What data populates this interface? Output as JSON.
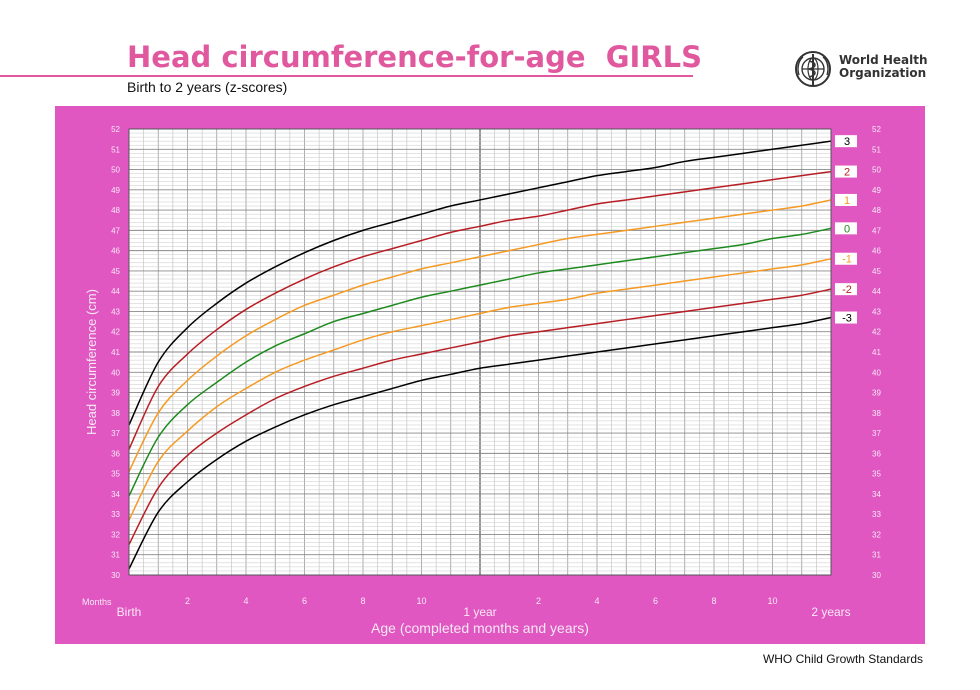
{
  "header": {
    "title": "Head circumference-for-age  GIRLS",
    "subtitle": "Birth to 2 years (z-scores)",
    "organization_line1": "World Health",
    "organization_line2": "Organization",
    "logo_icon": "who-emblem-icon"
  },
  "footer": {
    "text": "WHO Child Growth Standards"
  },
  "colors": {
    "title": "#e0589e",
    "panel_background": "#e057c2",
    "sd3": "#000000",
    "sd2": "#b81d24",
    "sd1": "#f59a23",
    "sd0": "#1e8a1e"
  },
  "chart_data": {
    "type": "line",
    "xlabel": "Age (completed months and years)",
    "ylabel": "Head circumference (cm)",
    "xlim": [
      0,
      24
    ],
    "ylim": [
      30,
      52
    ],
    "x_unit_label": "Months",
    "x_tick_labels": [
      {
        "month": 0,
        "label": "Birth"
      },
      {
        "month": 2,
        "label": "2"
      },
      {
        "month": 4,
        "label": "4"
      },
      {
        "month": 6,
        "label": "6"
      },
      {
        "month": 8,
        "label": "8"
      },
      {
        "month": 10,
        "label": "10"
      },
      {
        "month": 12,
        "label": "1 year"
      },
      {
        "month": 14,
        "label": "2"
      },
      {
        "month": 16,
        "label": "4"
      },
      {
        "month": 18,
        "label": "6"
      },
      {
        "month": 20,
        "label": "8"
      },
      {
        "month": 22,
        "label": "10"
      },
      {
        "month": 24,
        "label": "2 years"
      }
    ],
    "y_ticks": [
      30,
      31,
      32,
      33,
      34,
      35,
      36,
      37,
      38,
      39,
      40,
      41,
      42,
      43,
      44,
      45,
      46,
      47,
      48,
      49,
      50,
      51,
      52
    ],
    "grid": true,
    "x": [
      0,
      1,
      2,
      3,
      4,
      5,
      6,
      7,
      8,
      9,
      10,
      11,
      12,
      13,
      14,
      15,
      16,
      17,
      18,
      19,
      20,
      21,
      22,
      23,
      24
    ],
    "series": [
      {
        "name": "3",
        "color_key": "sd3",
        "values": [
          37.4,
          40.5,
          42.2,
          43.4,
          44.4,
          45.2,
          45.9,
          46.5,
          47.0,
          47.4,
          47.8,
          48.2,
          48.5,
          48.8,
          49.1,
          49.4,
          49.7,
          49.9,
          50.1,
          50.4,
          50.6,
          50.8,
          51.0,
          51.2,
          51.4
        ]
      },
      {
        "name": "2",
        "color_key": "sd2",
        "values": [
          36.2,
          39.3,
          40.9,
          42.1,
          43.1,
          43.9,
          44.6,
          45.2,
          45.7,
          46.1,
          46.5,
          46.9,
          47.2,
          47.5,
          47.7,
          48.0,
          48.3,
          48.5,
          48.7,
          48.9,
          49.1,
          49.3,
          49.5,
          49.7,
          49.9
        ]
      },
      {
        "name": "1",
        "color_key": "sd1",
        "values": [
          35.1,
          38.0,
          39.6,
          40.8,
          41.8,
          42.6,
          43.3,
          43.8,
          44.3,
          44.7,
          45.1,
          45.4,
          45.7,
          46.0,
          46.3,
          46.6,
          46.8,
          47.0,
          47.2,
          47.4,
          47.6,
          47.8,
          48.0,
          48.2,
          48.5
        ]
      },
      {
        "name": "0",
        "color_key": "sd0",
        "values": [
          33.9,
          36.8,
          38.4,
          39.5,
          40.5,
          41.3,
          41.9,
          42.5,
          42.9,
          43.3,
          43.7,
          44.0,
          44.3,
          44.6,
          44.9,
          45.1,
          45.3,
          45.5,
          45.7,
          45.9,
          46.1,
          46.3,
          46.6,
          46.8,
          47.1
        ]
      },
      {
        "name": "-1",
        "color_key": "sd1",
        "values": [
          32.7,
          35.6,
          37.1,
          38.3,
          39.2,
          40.0,
          40.6,
          41.1,
          41.6,
          42.0,
          42.3,
          42.6,
          42.9,
          43.2,
          43.4,
          43.6,
          43.9,
          44.1,
          44.3,
          44.5,
          44.7,
          44.9,
          45.1,
          45.3,
          45.6
        ]
      },
      {
        "name": "-2",
        "color_key": "sd2",
        "values": [
          31.5,
          34.3,
          35.9,
          37.0,
          37.9,
          38.7,
          39.3,
          39.8,
          40.2,
          40.6,
          40.9,
          41.2,
          41.5,
          41.8,
          42.0,
          42.2,
          42.4,
          42.6,
          42.8,
          43.0,
          43.2,
          43.4,
          43.6,
          43.8,
          44.1
        ]
      },
      {
        "name": "-3",
        "color_key": "sd3",
        "values": [
          30.3,
          33.1,
          34.6,
          35.7,
          36.6,
          37.3,
          37.9,
          38.4,
          38.8,
          39.2,
          39.6,
          39.9,
          40.2,
          40.4,
          40.6,
          40.8,
          41.0,
          41.2,
          41.4,
          41.6,
          41.8,
          42.0,
          42.2,
          42.4,
          42.7
        ]
      }
    ]
  }
}
